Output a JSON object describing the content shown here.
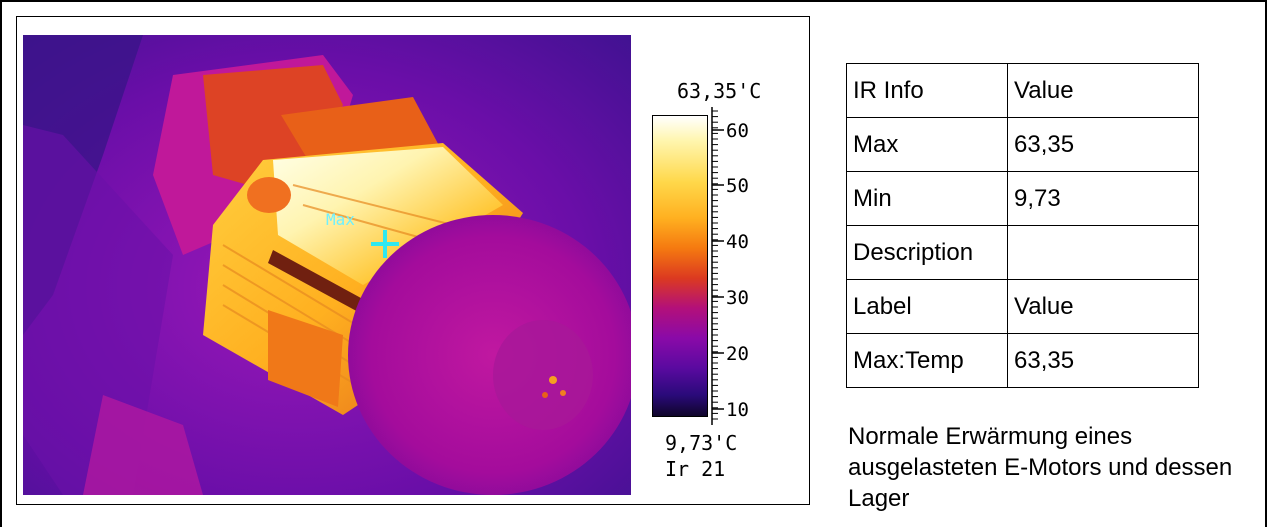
{
  "thermal_image": {
    "max_marker_label": "Max",
    "palette_colors": [
      "#ffffff",
      "#ffd84a",
      "#f57a10",
      "#b3107a",
      "#5a0aa0",
      "#10052a"
    ]
  },
  "scale": {
    "max_label": "63,35'C",
    "min_label": "9,73'C",
    "image_id": "Ir 21",
    "ticks": [
      "60",
      "50",
      "40",
      "30",
      "20",
      "10"
    ]
  },
  "info_table": {
    "rows": [
      {
        "label": "IR Info",
        "value": "Value"
      },
      {
        "label": "Max",
        "value": "63,35"
      },
      {
        "label": "Min",
        "value": "9,73"
      },
      {
        "label": "Description",
        "value": ""
      },
      {
        "label": "Label",
        "value": "Value"
      },
      {
        "label": "Max:Temp",
        "value": "63,35"
      }
    ]
  },
  "caption": "Normale Erwärmung eines ausgelasteten E-Motors und dessen Lager"
}
